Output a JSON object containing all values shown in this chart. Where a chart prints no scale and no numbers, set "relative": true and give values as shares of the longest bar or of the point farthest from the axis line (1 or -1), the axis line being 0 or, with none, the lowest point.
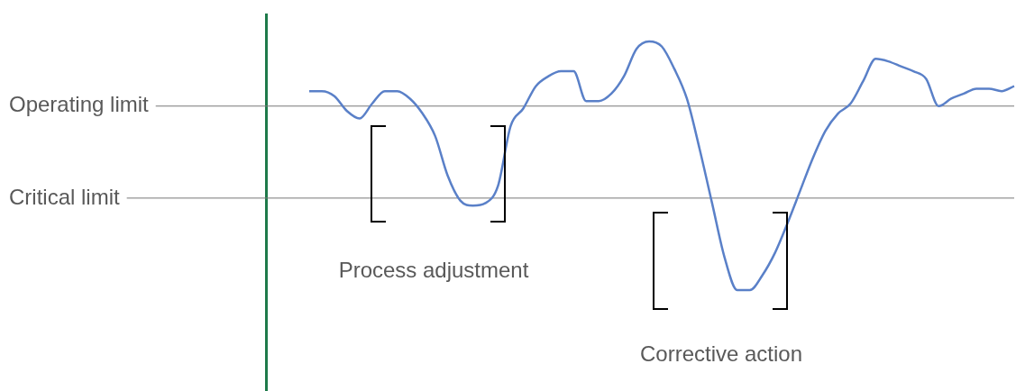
{
  "chart_data": {
    "type": "line",
    "relative": true,
    "categories": [
      null,
      null,
      null,
      null,
      null,
      null,
      null,
      null,
      null,
      null,
      null,
      null,
      null,
      null,
      null,
      null,
      null,
      null,
      null,
      null,
      null,
      null,
      null,
      null,
      null,
      null,
      null,
      null,
      null,
      null,
      null,
      null,
      null,
      null,
      null,
      null,
      null,
      null,
      null,
      null,
      null,
      null,
      null,
      null,
      null,
      null,
      null,
      null,
      null,
      null,
      null,
      null,
      null,
      null,
      null,
      null,
      null
    ],
    "series": [
      {
        "color": "#5a80c8",
        "values": [
          0.8,
          0.8,
          0.78,
          0.72,
          0.69,
          0.75,
          0.8,
          0.8,
          0.77,
          0.71,
          0.62,
          0.46,
          0.36,
          0.34,
          0.35,
          0.42,
          0.66,
          0.73,
          0.82,
          0.86,
          0.88,
          0.88,
          0.76,
          0.76,
          0.79,
          0.86,
          0.97,
          1,
          0.98,
          0.89,
          0.77,
          0.57,
          0.35,
          0.13,
          0,
          0,
          0.06,
          0.15,
          0.27,
          0.4,
          0.53,
          0.64,
          0.71,
          0.75,
          0.84,
          0.93,
          0.92,
          0.9,
          0.88,
          0.85,
          0.74,
          0.77,
          0.79,
          0.81,
          0.81,
          0.8,
          0.82
        ]
      }
    ],
    "ref_lines": [
      {
        "axis": "y",
        "value": 0.74,
        "label": "Operating limit",
        "color": "#777777"
      },
      {
        "axis": "y",
        "value": 0.37,
        "label": "Critical limit",
        "color": "#777777"
      }
    ],
    "annotations": [
      "Process adjustment",
      "Corrective action"
    ]
  }
}
